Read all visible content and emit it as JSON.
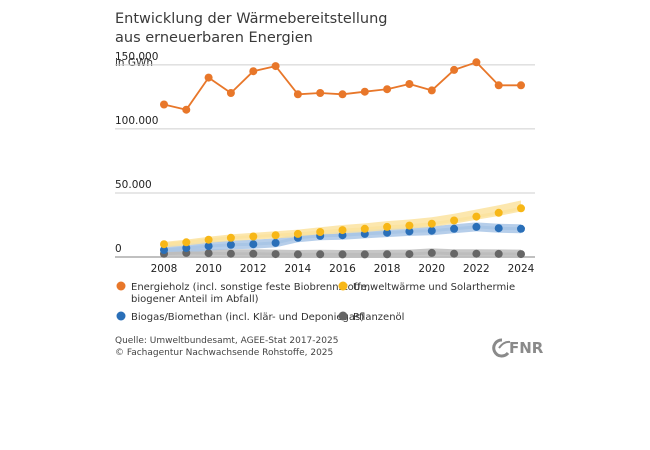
{
  "chart_data": {
    "type": "line",
    "title_lines": [
      "Entwicklung der Wärmebereitstellung",
      "aus erneuerbaren Energien"
    ],
    "unit": "in GWh",
    "x": [
      2008,
      2009,
      2010,
      2011,
      2012,
      2013,
      2014,
      2015,
      2016,
      2017,
      2018,
      2019,
      2020,
      2021,
      2022,
      2023,
      2024
    ],
    "xticks": [
      "2008",
      "2010",
      "2012",
      "2014",
      "2016",
      "2018",
      "2020",
      "2022",
      "2024"
    ],
    "ylim": [
      0,
      160000
    ],
    "yticks": [
      {
        "value": 0,
        "label": "0"
      },
      {
        "value": 50000,
        "label": "50.000"
      },
      {
        "value": 100000,
        "label": "100.000"
      },
      {
        "value": 150000,
        "label": "150.000"
      }
    ],
    "series": [
      {
        "key": "holz",
        "name_lines": [
          "Energieholz (incl. sonstige feste Biobrennstoffe,",
          "biogener Anteil im Abfall)"
        ],
        "color": "#e8772a",
        "band": "#f5c29c",
        "values": [
          119000,
          115000,
          140000,
          128000,
          145000,
          149000,
          127000,
          128000,
          127000,
          129000,
          131000,
          135000,
          130000,
          146000,
          152000,
          134000,
          134000
        ]
      },
      {
        "key": "umwelt",
        "name_lines": [
          "Umweltwärme und Solarthermie"
        ],
        "color": "#f7b717",
        "band": "#fbe3a0",
        "values": [
          10000,
          11500,
          13500,
          15000,
          16000,
          17000,
          18000,
          19500,
          21000,
          22000,
          23500,
          24500,
          26000,
          28500,
          31500,
          34500,
          38000
        ]
      },
      {
        "key": "biogas",
        "name_lines": [
          "Biogas/Biomethan (incl. Klär- und Deponiegas)"
        ],
        "color": "#2a6fb8",
        "band": "#a9c6e6",
        "values": [
          5500,
          7000,
          8500,
          9500,
          10000,
          11000,
          15000,
          16500,
          17000,
          18000,
          19000,
          20000,
          20500,
          22000,
          23500,
          22500,
          22000
        ]
      },
      {
        "key": "oel",
        "name_lines": [
          "Pflanzenöl"
        ],
        "color": "#666666",
        "band": "#bdbdbd",
        "values": [
          2500,
          3200,
          3000,
          2600,
          2500,
          2300,
          2000,
          2100,
          2000,
          2000,
          2100,
          2300,
          3200,
          2600,
          2600,
          2400,
          2300
        ]
      }
    ]
  },
  "source_lines": [
    "Quelle: Umweltbundesamt, AGEE-Stat 2017-2025",
    "© Fachagentur Nachwachsende Rohstoffe, 2025"
  ],
  "logo_text": "FNR"
}
